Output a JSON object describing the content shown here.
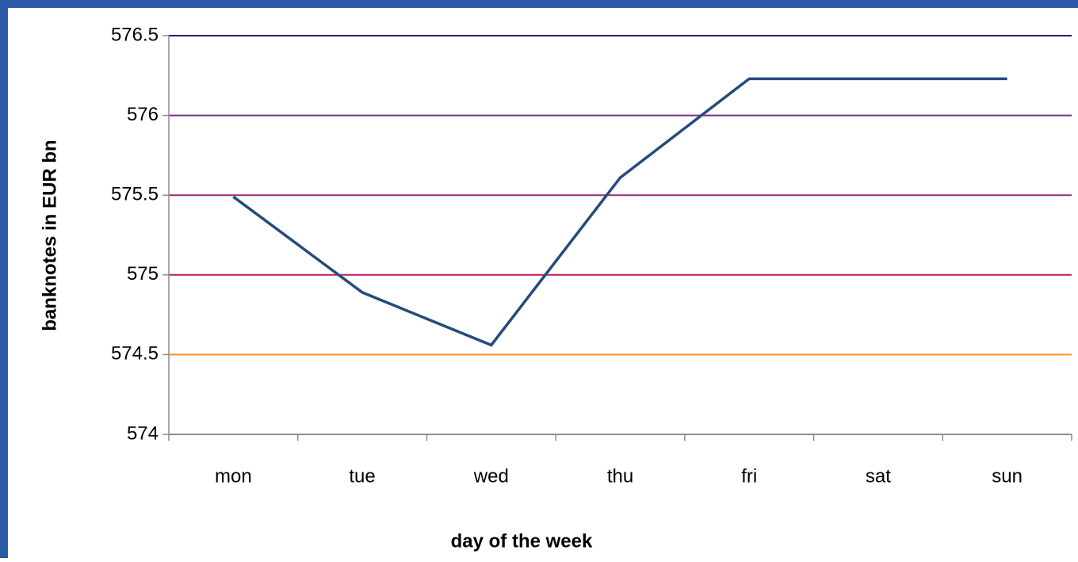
{
  "chart_data": {
    "type": "line",
    "x_label": "day of the week",
    "y_label": "banknotes in EUR bn",
    "categories": [
      "mon",
      "tue",
      "wed",
      "thu",
      "fri",
      "sat",
      "sun"
    ],
    "series": [
      {
        "name": "banknotes",
        "color": "#254a7c",
        "values": [
          575.49,
          574.89,
          574.56,
          575.61,
          576.23,
          576.23,
          576.23
        ]
      }
    ],
    "ylim": [
      574,
      576.5
    ],
    "yticks": [
      574,
      574.5,
      575,
      575.5,
      576,
      576.5
    ],
    "grid": true,
    "grid_colors": [
      "#8c8c8c",
      "#ff8c1a",
      "#c0185c",
      "#992a72",
      "#7b2c8c",
      "#1f1f7a"
    ]
  }
}
